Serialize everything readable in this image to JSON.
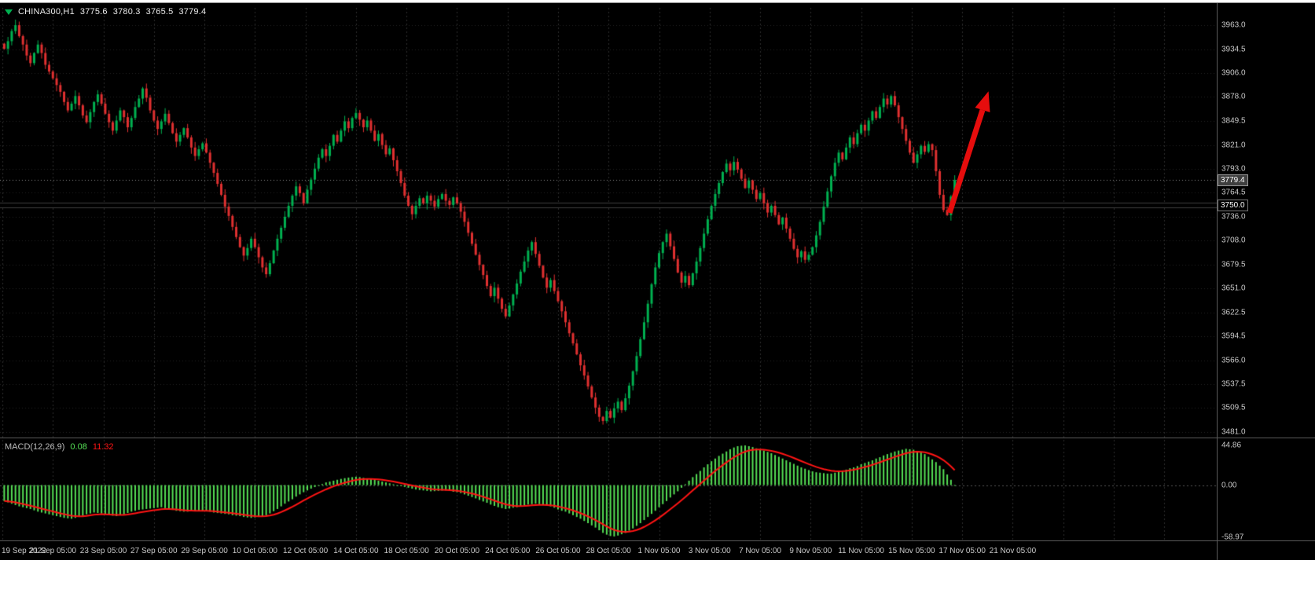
{
  "header": {
    "symbol": "CHINA300,H1",
    "open": "3775.6",
    "high": "3780.3",
    "low": "3765.5",
    "close": "3779.4"
  },
  "price_axis": {
    "current_price": "3779.4",
    "hline_label": "3750.0"
  },
  "macd_panel": {
    "title": "MACD(12,26,9)",
    "main_value": "0.08",
    "signal_value": "11.32"
  },
  "colors": {
    "background": "#000000",
    "grid_vertical": "#2E2E2E",
    "grid_horizontal": "#242424",
    "bull": "#00B050",
    "bear": "#E03030",
    "macd_bar": "#55E055",
    "macd_signal": "#FF1414",
    "arrow": "#E60D0D",
    "hline": "#000000",
    "hline_edge": "#3C3C3C",
    "bid_line": "#8C8C8C",
    "axis_text": "#C8C8C8",
    "separator": "#5A5A5A",
    "header_text": "#E8E8E8"
  },
  "chart_data": [
    {
      "type": "candlestick",
      "title": "CHINA300,H1",
      "timeframe": "H1",
      "last_ohlc": {
        "open": 3775.6,
        "high": 3780.3,
        "low": 3765.5,
        "close": 3779.4
      },
      "horizontal_line": 3750.0,
      "current_price_line": 3779.4,
      "y_axis": {
        "min": 3481.0,
        "max": 3963.0,
        "tick_labels": [
          "3963.0",
          "3934.5",
          "3906.0",
          "3878.0",
          "3849.5",
          "3821.0",
          "3793.0",
          "3764.5",
          "3736.0",
          "3708.0",
          "3679.5",
          "3651.0",
          "3622.5",
          "3594.5",
          "3566.0",
          "3537.5",
          "3509.5",
          "3481.0"
        ]
      },
      "x_axis": {
        "tick_labels": [
          "19 Sep 2022",
          "21 Sep 05:00",
          "23 Sep 05:00",
          "27 Sep 05:00",
          "29 Sep 05:00",
          "10 Oct 05:00",
          "12 Oct 05:00",
          "14 Oct 05:00",
          "18 Oct 05:00",
          "20 Oct 05:00",
          "24 Oct 05:00",
          "26 Oct 05:00",
          "28 Oct 05:00",
          "1 Nov 05:00",
          "3 Nov 05:00",
          "7 Nov 05:00",
          "9 Nov 05:00",
          "11 Nov 05:00",
          "15 Nov 05:00",
          "17 Nov 05:00",
          "21 Nov 05:00"
        ]
      },
      "closes": [
        3935,
        3944,
        3956,
        3963,
        3950,
        3940,
        3927,
        3918,
        3930,
        3940,
        3930,
        3916,
        3908,
        3900,
        3892,
        3884,
        3872,
        3862,
        3870,
        3879,
        3868,
        3856,
        3848,
        3860,
        3872,
        3881,
        3870,
        3858,
        3848,
        3838,
        3850,
        3862,
        3854,
        3842,
        3853,
        3866,
        3876,
        3888,
        3877,
        3862,
        3850,
        3840,
        3849,
        3858,
        3847,
        3835,
        3825,
        3833,
        3841,
        3830,
        3818,
        3808,
        3816,
        3823,
        3812,
        3800,
        3788,
        3775,
        3762,
        3748,
        3737,
        3724,
        3712,
        3700,
        3690,
        3699,
        3710,
        3700,
        3688,
        3676,
        3668,
        3681,
        3696,
        3710,
        3723,
        3736,
        3749,
        3761,
        3772,
        3764,
        3752,
        3768,
        3780,
        3793,
        3806,
        3816,
        3808,
        3820,
        3833,
        3825,
        3838,
        3849,
        3841,
        3853,
        3859,
        3851,
        3842,
        3850,
        3838,
        3826,
        3834,
        3821,
        3810,
        3817,
        3803,
        3790,
        3776,
        3761,
        3749,
        3739,
        3749,
        3758,
        3752,
        3761,
        3755,
        3748,
        3757,
        3763,
        3755,
        3750,
        3759,
        3752,
        3742,
        3730,
        3717,
        3704,
        3691,
        3679,
        3667,
        3654,
        3642,
        3652,
        3639,
        3627,
        3618,
        3631,
        3644,
        3657,
        3671,
        3683,
        3696,
        3706,
        3692,
        3678,
        3664,
        3652,
        3661,
        3648,
        3636,
        3624,
        3611,
        3598,
        3586,
        3573,
        3560,
        3548,
        3535,
        3522,
        3510,
        3499,
        3494,
        3506,
        3498,
        3509,
        3517,
        3507,
        3521,
        3536,
        3553,
        3571,
        3591,
        3611,
        3633,
        3656,
        3676,
        3693,
        3706,
        3716,
        3701,
        3686,
        3670,
        3658,
        3666,
        3655,
        3669,
        3683,
        3699,
        3716,
        3733,
        3749,
        3763,
        3776,
        3789,
        3799,
        3791,
        3801,
        3792,
        3781,
        3770,
        3779,
        3768,
        3757,
        3764,
        3752,
        3741,
        3749,
        3738,
        3727,
        3735,
        3722,
        3710,
        3698,
        3688,
        3695,
        3685,
        3691,
        3700,
        3714,
        3730,
        3748,
        3766,
        3784,
        3800,
        3812,
        3804,
        3818,
        3830,
        3822,
        3835,
        3845,
        3838,
        3850,
        3861,
        3853,
        3866,
        3876,
        3869,
        3879,
        3868,
        3854,
        3840,
        3826,
        3812,
        3800,
        3810,
        3820,
        3813,
        3822,
        3815,
        3790,
        3762,
        3744,
        3738,
        3760,
        3779.4
      ]
    },
    {
      "type": "bar",
      "title": "MACD(12,26,9)",
      "y_axis": {
        "min": -58.97,
        "max": 44.86,
        "tick_labels": [
          "44.86",
          "0.00",
          "-58.97"
        ]
      },
      "current": {
        "macd": 0.08,
        "signal": 11.32
      },
      "signal_note": "red line = 9-period EMA of histogram values",
      "values": [
        -18,
        -19.5,
        -21,
        -22.5,
        -24,
        -25,
        -26,
        -27,
        -28.5,
        -30,
        -31,
        -32,
        -33,
        -34,
        -35,
        -36,
        -37,
        -37.5,
        -38,
        -37,
        -36,
        -34.5,
        -33,
        -32,
        -31,
        -31.5,
        -32,
        -33,
        -34,
        -34.5,
        -35,
        -34,
        -33,
        -31.5,
        -30,
        -29,
        -28,
        -27.5,
        -27,
        -26.5,
        -26,
        -25.5,
        -25,
        -26,
        -27,
        -28,
        -29,
        -29.5,
        -30,
        -30,
        -29.5,
        -29.5,
        -29,
        -29,
        -29,
        -30,
        -31,
        -31.5,
        -32,
        -32.5,
        -33,
        -34,
        -34.5,
        -35,
        -36,
        -36.5,
        -37,
        -36.5,
        -36,
        -35,
        -34,
        -32,
        -29.5,
        -27,
        -24,
        -21,
        -18.5,
        -16,
        -13,
        -10.5,
        -8,
        -6,
        -4,
        -2.2,
        -0.5,
        1.2,
        3,
        4,
        5,
        6,
        7,
        7.8,
        8.5,
        9,
        9.5,
        9,
        8.2,
        7.6,
        7,
        6,
        5,
        4,
        3,
        2,
        1,
        0,
        -1,
        -2,
        -3,
        -4,
        -5,
        -5.5,
        -6,
        -6.5,
        -7,
        -6.8,
        -6.5,
        -6.2,
        -6,
        -6.5,
        -7.5,
        -8,
        -9,
        -10.5,
        -12,
        -13.5,
        -15,
        -16.8,
        -18.5,
        -20,
        -22,
        -23.5,
        -25,
        -26,
        -27,
        -26.5,
        -25.5,
        -25,
        -24,
        -23,
        -22,
        -21.5,
        -21,
        -21.5,
        -22.5,
        -23,
        -24,
        -25.5,
        -27.5,
        -29,
        -30,
        -32,
        -34,
        -36,
        -38,
        -40.5,
        -43,
        -45.5,
        -48,
        -51,
        -54,
        -56,
        -57.5,
        -58,
        -57,
        -55.5,
        -54,
        -51.5,
        -49,
        -46,
        -43,
        -39.5,
        -36,
        -32.5,
        -29,
        -25,
        -21.5,
        -18,
        -14,
        -10.5,
        -7,
        -3,
        1,
        5,
        9,
        12.5,
        16,
        20,
        23.5,
        27,
        30,
        33,
        35.5,
        38,
        40.5,
        42.5,
        44,
        44.5,
        44.8,
        44,
        43,
        41.5,
        40,
        39,
        37.5,
        36,
        34,
        32,
        30,
        28,
        26,
        24,
        22,
        20,
        18.5,
        17,
        15.5,
        14.5,
        14,
        13.5,
        13,
        13,
        14,
        15,
        16,
        17.5,
        19,
        20,
        21.5,
        23.5,
        25,
        26.5,
        28,
        30,
        31.5,
        33.5,
        35,
        36.5,
        38,
        39,
        40,
        41,
        40.5,
        40,
        38.5,
        37,
        35,
        32,
        29,
        26,
        22,
        18,
        12,
        6,
        0.08
      ]
    }
  ]
}
